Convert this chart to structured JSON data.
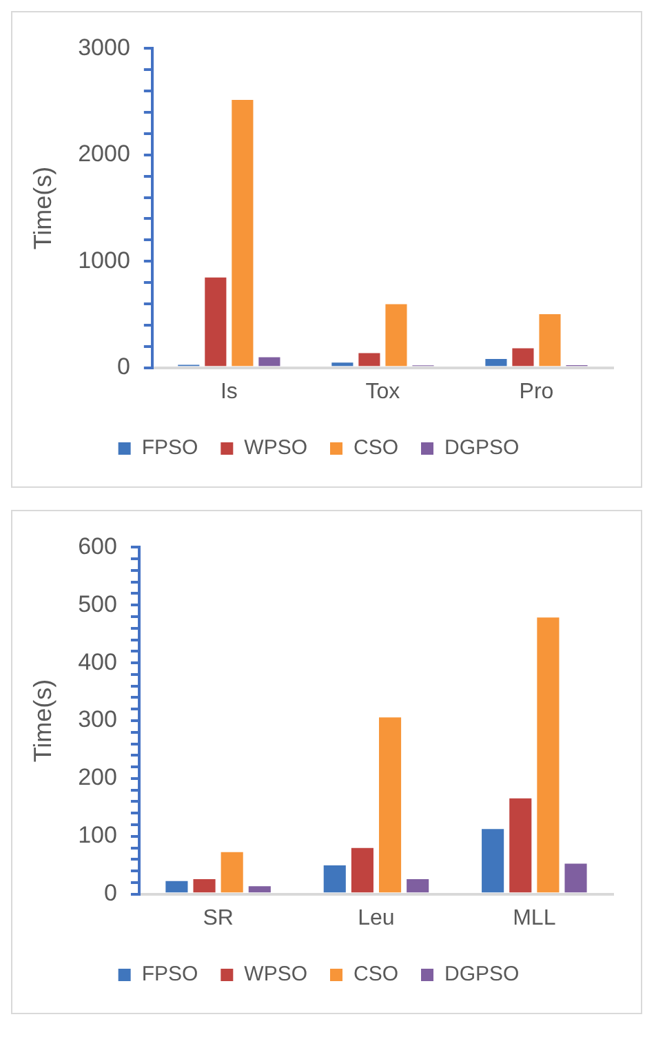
{
  "chart_data": [
    {
      "type": "bar",
      "ylabel": "Time(s)",
      "categories": [
        "Is",
        "Tox",
        "Pro"
      ],
      "series": [
        {
          "name": "FPSO",
          "color": "#4076bd",
          "values": [
            40,
            60,
            95
          ]
        },
        {
          "name": "WPSO",
          "color": "#c0433f",
          "values": [
            860,
            150,
            195
          ]
        },
        {
          "name": "CSO",
          "color": "#f79539",
          "values": [
            2530,
            610,
            515
          ]
        },
        {
          "name": "DGPSO",
          "color": "#7f5fa0",
          "values": [
            110,
            30,
            35
          ]
        }
      ],
      "ylim": [
        0,
        3000
      ],
      "yticks": [
        0,
        {
          "value": 200,
          "label": null
        },
        {
          "value": 400,
          "label": null
        },
        {
          "value": 600,
          "label": null
        },
        {
          "value": 800,
          "label": null
        },
        1000,
        {
          "value": 1200,
          "label": null
        },
        {
          "value": 1400,
          "label": null
        },
        {
          "value": 1600,
          "label": null
        },
        {
          "value": 1800,
          "label": null
        },
        2000,
        {
          "value": 2200,
          "label": null
        },
        {
          "value": 2400,
          "label": null
        },
        {
          "value": 2600,
          "label": null
        },
        {
          "value": 2800,
          "label": null
        },
        3000
      ],
      "grid": false,
      "legend": "bottom"
    },
    {
      "type": "bar",
      "ylabel": "Time(s)",
      "categories": [
        "SR",
        "Leu",
        "MLL"
      ],
      "series": [
        {
          "name": "FPSO",
          "color": "#4076bd",
          "values": [
            25,
            52,
            115
          ]
        },
        {
          "name": "WPSO",
          "color": "#c0433f",
          "values": [
            28,
            82,
            168
          ]
        },
        {
          "name": "CSO",
          "color": "#f79539",
          "values": [
            75,
            308,
            481
          ]
        },
        {
          "name": "DGPSO",
          "color": "#7f5fa0",
          "values": [
            16,
            28,
            55
          ]
        }
      ],
      "ylim": [
        0,
        600
      ],
      "yticks": [
        0,
        {
          "value": 20,
          "label": null
        },
        {
          "value": 40,
          "label": null
        },
        {
          "value": 60,
          "label": null
        },
        {
          "value": 80,
          "label": null
        },
        100,
        {
          "value": 120,
          "label": null
        },
        {
          "value": 140,
          "label": null
        },
        {
          "value": 160,
          "label": null
        },
        {
          "value": 180,
          "label": null
        },
        200,
        {
          "value": 220,
          "label": null
        },
        {
          "value": 240,
          "label": null
        },
        {
          "value": 260,
          "label": null
        },
        {
          "value": 280,
          "label": null
        },
        300,
        {
          "value": 320,
          "label": null
        },
        {
          "value": 340,
          "label": null
        },
        {
          "value": 360,
          "label": null
        },
        {
          "value": 380,
          "label": null
        },
        400,
        {
          "value": 420,
          "label": null
        },
        {
          "value": 440,
          "label": null
        },
        {
          "value": 460,
          "label": null
        },
        {
          "value": 480,
          "label": null
        },
        500,
        {
          "value": 520,
          "label": null
        },
        {
          "value": 540,
          "label": null
        },
        {
          "value": 560,
          "label": null
        },
        {
          "value": 580,
          "label": null
        },
        600
      ],
      "grid": false,
      "legend": "bottom"
    }
  ]
}
